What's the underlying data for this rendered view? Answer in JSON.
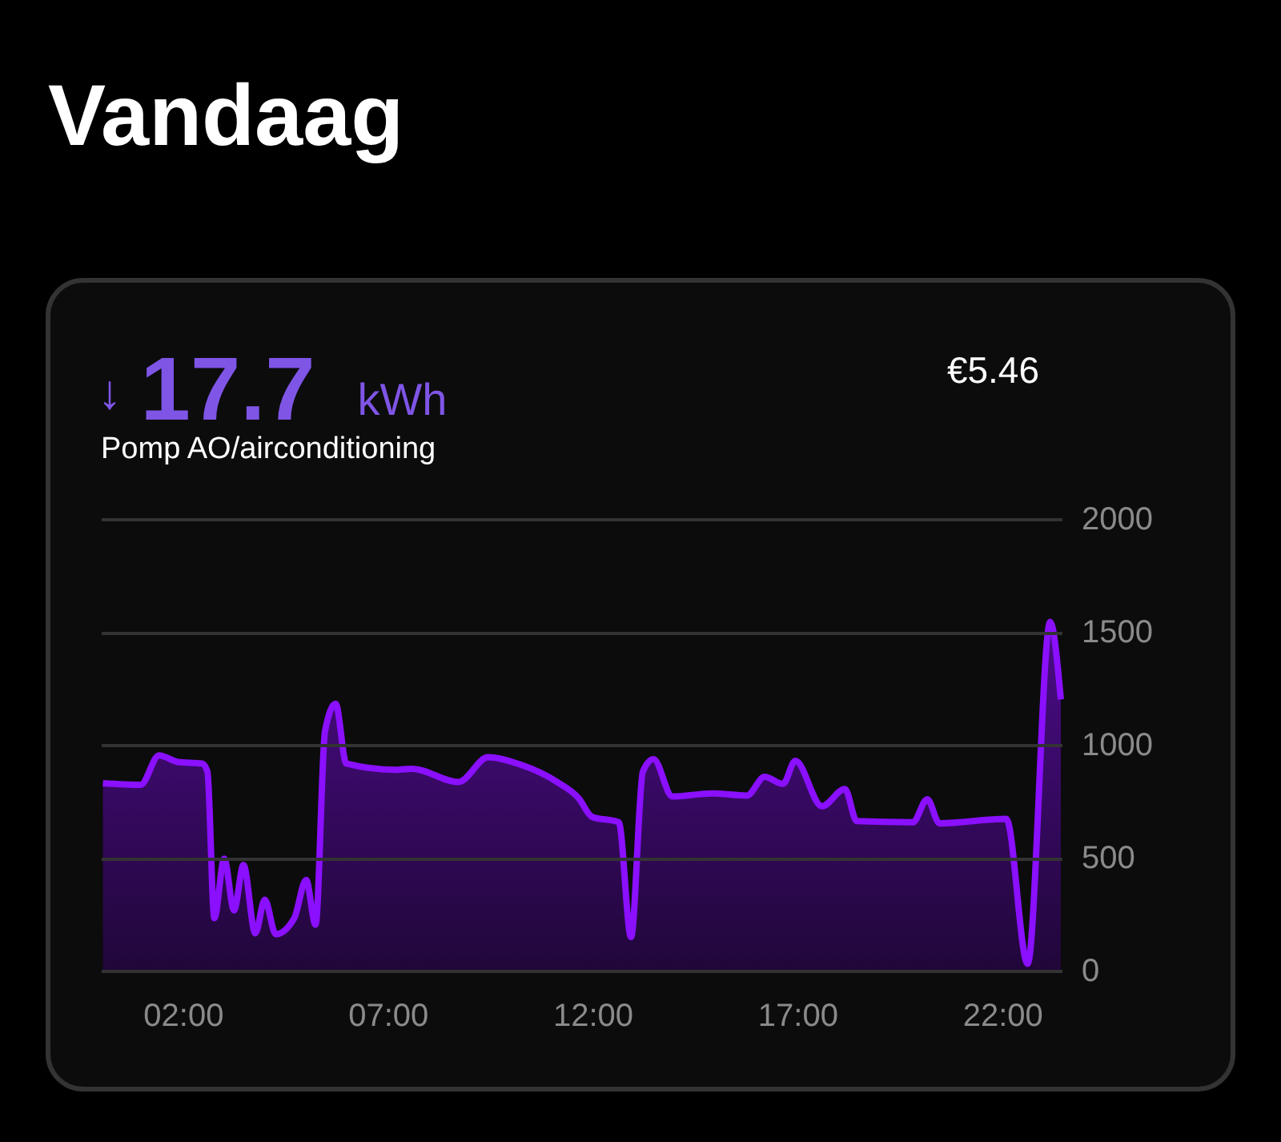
{
  "chart_data": {
    "type": "area",
    "title": "Vandaag",
    "subtitle": "Pomp AO/airconditioning",
    "annotations": [
      "↓ 17.7 kWh",
      "€5.46"
    ],
    "x": [
      0.05,
      0.97,
      1.42,
      1.88,
      2.47,
      2.6,
      2.77,
      3.01,
      3.25,
      3.48,
      3.77,
      4.0,
      4.27,
      4.72,
      5.01,
      5.24,
      5.47,
      5.73,
      5.99,
      7.2,
      7.6,
      8.73,
      9.45,
      10.23,
      11.14,
      11.66,
      11.99,
      12.64,
      12.94,
      13.23,
      13.49,
      13.95,
      14.92,
      15.77,
      16.2,
      16.65,
      16.95,
      17.6,
      18.16,
      18.45,
      19.82,
      20.17,
      20.47,
      22.1,
      22.62,
      23.17,
      23.43
    ],
    "series": [
      {
        "color": "#8a10ff",
        "values": [
          830,
          823,
          953,
          924,
          917,
          882,
          232,
          496,
          267,
          468,
          165,
          314,
          161,
          232,
          402,
          203,
          1059,
          1182,
          917,
          889,
          894,
          835,
          945,
          913,
          835,
          764,
          681,
          657,
          149,
          882,
          936,
          771,
          785,
          775,
          858,
          827,
          929,
          728,
          804,
          662,
          657,
          759,
          652,
          672,
          30,
          1544,
          1201
        ]
      }
    ],
    "xlim": [
      0,
      23.45
    ],
    "xticks": [
      {
        "value": 2,
        "label": "02:00"
      },
      {
        "value": 7,
        "label": "07:00"
      },
      {
        "value": 12,
        "label": "12:00"
      },
      {
        "value": 17,
        "label": "17:00"
      },
      {
        "value": 22,
        "label": "22:00"
      }
    ],
    "ylim": [
      0,
      2000
    ],
    "yticks": [
      0,
      500,
      1000,
      1500,
      2000
    ],
    "grid": "y"
  }
}
